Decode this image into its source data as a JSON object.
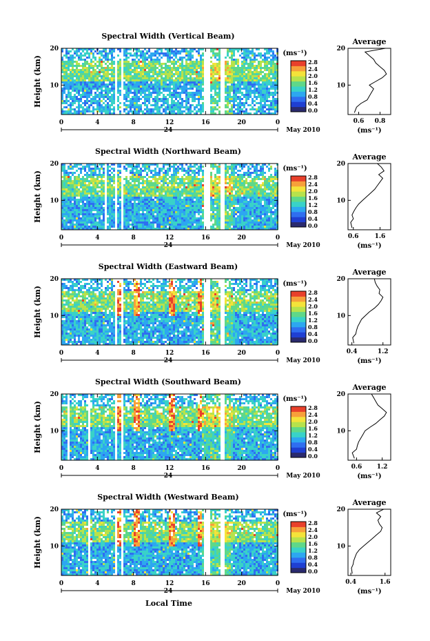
{
  "figure": {
    "x_axis_label": "Local Time",
    "date_label": "May 2010",
    "day_label": "24",
    "y_axis_label": "Height (km)",
    "colorbar_unit": "(ms⁻¹)",
    "colorbar_ticks": [
      "0.0",
      "0.4",
      "0.8",
      "1.2",
      "1.6",
      "2.0",
      "2.4",
      "2.8"
    ],
    "average_title": "Average",
    "average_unit": "(ms⁻¹)",
    "colormap": [
      "#2a2a6e",
      "#1f3fd2",
      "#2f6ef0",
      "#2da7f0",
      "#39d2c8",
      "#5fd889",
      "#b7e24c",
      "#f4e33a",
      "#f7a03a",
      "#e8402b"
    ]
  },
  "chart_data": [
    {
      "type": "heatmap",
      "title": "Spectral Width (Vertical Beam)",
      "x_ticks": [
        "0",
        "4",
        "8",
        "12",
        "16",
        "20",
        "0"
      ],
      "y_ticks": [
        "20",
        "10"
      ],
      "xlim": [
        0,
        24
      ],
      "ylim": [
        2,
        20
      ],
      "data_gaps_hours": [
        [
          5.8,
          6.1
        ],
        [
          6.6,
          6.8
        ],
        [
          15.6,
          16.3
        ],
        [
          17.6,
          17.9
        ]
      ],
      "intensity": "moderate",
      "average_profile": {
        "x_ticks": [
          "0.6",
          "0.8"
        ],
        "xlim": [
          0.5,
          0.9
        ],
        "heights_km": [
          2.5,
          4,
          5,
          6,
          7,
          8,
          9,
          10,
          11,
          12,
          13,
          14,
          15,
          16,
          17,
          18,
          19,
          20
        ],
        "values": [
          0.56,
          0.58,
          0.62,
          0.68,
          0.7,
          0.72,
          0.74,
          0.7,
          0.76,
          0.82,
          0.86,
          0.84,
          0.8,
          0.76,
          0.74,
          0.7,
          0.66,
          0.85
        ]
      }
    },
    {
      "type": "heatmap",
      "title": "Spectral Width (Northward Beam)",
      "x_ticks": [
        "0",
        "4",
        "8",
        "12",
        "16",
        "20",
        "0"
      ],
      "y_ticks": [
        "20",
        "10"
      ],
      "xlim": [
        0,
        24
      ],
      "ylim": [
        2,
        20
      ],
      "data_gaps_hours": [
        [
          4.8,
          5.0
        ],
        [
          5.8,
          6.1
        ],
        [
          6.6,
          6.8
        ],
        [
          15.6,
          16.3
        ],
        [
          17.6,
          17.9
        ]
      ],
      "intensity": "moderate",
      "average_profile": {
        "x_ticks": [
          "0.6",
          "1.6"
        ],
        "xlim": [
          0.4,
          2.0
        ],
        "heights_km": [
          2.5,
          4,
          5,
          6,
          7,
          8,
          9,
          10,
          11,
          12,
          13,
          14,
          15,
          16,
          17,
          18,
          19,
          20
        ],
        "values": [
          0.55,
          0.5,
          0.6,
          0.55,
          0.62,
          0.7,
          0.8,
          0.95,
          1.1,
          1.25,
          1.4,
          1.5,
          1.6,
          1.7,
          1.55,
          1.75,
          1.65,
          1.5
        ]
      }
    },
    {
      "type": "heatmap",
      "title": "Spectral Width (Eastward Beam)",
      "x_ticks": [
        "0",
        "4",
        "8",
        "12",
        "16",
        "20",
        "0"
      ],
      "y_ticks": [
        "20",
        "10"
      ],
      "xlim": [
        0,
        24
      ],
      "ylim": [
        2,
        20
      ],
      "data_gaps_hours": [
        [
          5.9,
          6.1
        ],
        [
          6.6,
          6.8
        ],
        [
          15.6,
          16.3
        ],
        [
          17.6,
          17.9
        ]
      ],
      "intensity": "high",
      "average_profile": {
        "x_ticks": [
          "0.4",
          "1.2"
        ],
        "xlim": [
          0.3,
          1.4
        ],
        "heights_km": [
          2.5,
          4,
          5,
          6,
          7,
          8,
          9,
          10,
          11,
          12,
          13,
          14,
          15,
          16,
          17,
          18,
          19,
          20
        ],
        "values": [
          0.45,
          0.42,
          0.5,
          0.52,
          0.55,
          0.6,
          0.65,
          0.75,
          0.85,
          0.98,
          1.08,
          1.15,
          1.2,
          1.1,
          1.12,
          1.05,
          1.0,
          0.98
        ]
      }
    },
    {
      "type": "heatmap",
      "title": "Spectral Width (Southward Beam)",
      "x_ticks": [
        "0",
        "4",
        "8",
        "12",
        "16",
        "20",
        "0"
      ],
      "y_ticks": [
        "20",
        "10"
      ],
      "xlim": [
        0,
        24
      ],
      "ylim": [
        2,
        20
      ],
      "data_gaps_hours": [
        [
          0.6,
          0.8
        ],
        [
          2.9,
          3.2
        ],
        [
          5.8,
          6.1
        ],
        [
          6.6,
          6.8
        ],
        [
          17.6,
          17.9
        ]
      ],
      "intensity": "high",
      "average_profile": {
        "x_ticks": [
          "0.6",
          "1.2"
        ],
        "xlim": [
          0.4,
          1.4
        ],
        "heights_km": [
          2.5,
          4,
          5,
          6,
          7,
          8,
          9,
          10,
          11,
          12,
          13,
          14,
          15,
          16,
          17,
          18,
          19,
          20
        ],
        "values": [
          0.55,
          0.5,
          0.6,
          0.62,
          0.65,
          0.7,
          0.75,
          0.8,
          0.92,
          1.05,
          1.15,
          1.25,
          1.3,
          1.2,
          1.1,
          1.05,
          1.0,
          0.95
        ]
      }
    },
    {
      "type": "heatmap",
      "title": "Spectral Width (Westward Beam)",
      "x_ticks": [
        "0",
        "4",
        "8",
        "12",
        "16",
        "20",
        "0"
      ],
      "y_ticks": [
        "20",
        "10"
      ],
      "xlim": [
        0,
        24
      ],
      "ylim": [
        2,
        20
      ],
      "data_gaps_hours": [
        [
          2.9,
          3.2
        ],
        [
          5.8,
          6.1
        ],
        [
          6.6,
          6.8
        ],
        [
          15.6,
          16.3
        ],
        [
          17.6,
          17.9
        ]
      ],
      "intensity": "high",
      "average_profile": {
        "x_ticks": [
          "0.4",
          "1.6"
        ],
        "xlim": [
          0.3,
          1.8
        ],
        "heights_km": [
          2.5,
          4,
          5,
          6,
          7,
          8,
          9,
          10,
          11,
          12,
          13,
          14,
          15,
          16,
          17,
          18,
          19,
          20
        ],
        "values": [
          0.45,
          0.42,
          0.48,
          0.5,
          0.55,
          0.6,
          0.7,
          0.85,
          1.0,
          1.15,
          1.3,
          1.45,
          1.5,
          1.4,
          1.35,
          1.45,
          1.3,
          1.55
        ]
      }
    }
  ]
}
